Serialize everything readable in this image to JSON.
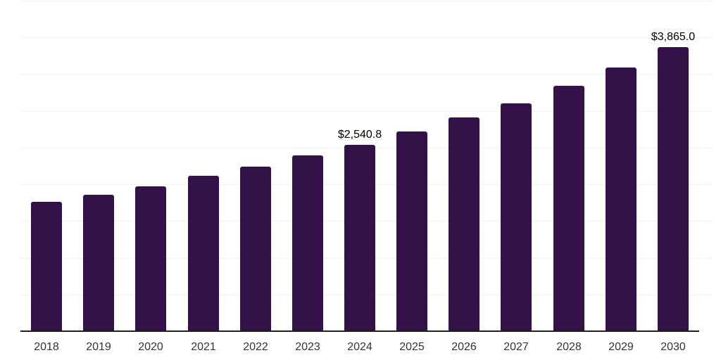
{
  "chart_data": {
    "type": "bar",
    "title": "",
    "xlabel": "",
    "ylabel": "",
    "categories": [
      "2018",
      "2019",
      "2020",
      "2021",
      "2022",
      "2023",
      "2024",
      "2025",
      "2026",
      "2027",
      "2028",
      "2029",
      "2030"
    ],
    "values": [
      1760,
      1855,
      1970,
      2115,
      2240,
      2398,
      2540.8,
      2722,
      2914,
      3105,
      3339,
      3595,
      3865
    ],
    "data_labels": [
      "",
      "",
      "",
      "",
      "",
      "",
      "$2,540.8",
      "",
      "",
      "",
      "",
      "",
      "$3,865.0"
    ],
    "ylim": [
      0,
      4500
    ],
    "grid_step": 500,
    "grid": true,
    "legend": false,
    "y_axis_labels_visible": false,
    "colors": {
      "bar": "#341148",
      "gridline": "#f0f0f0",
      "axis_line": "#1f1f1f",
      "tick_label": "#333333",
      "data_label": "#000000",
      "background": "#ffffff"
    }
  }
}
